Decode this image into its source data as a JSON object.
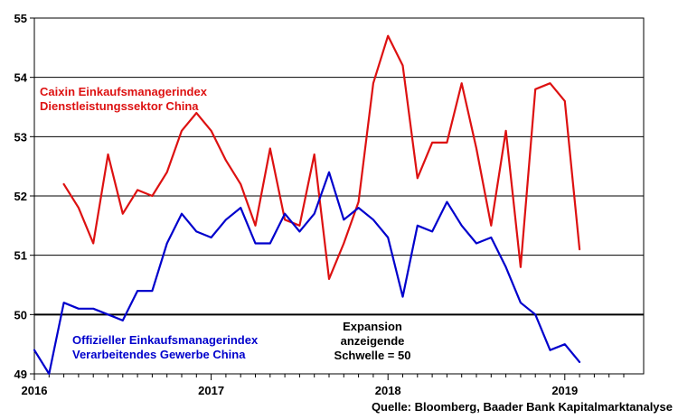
{
  "chart_data": {
    "type": "line",
    "ylim": [
      49,
      55
    ],
    "yticks": [
      "49",
      "50",
      "51",
      "52",
      "53",
      "54",
      "55"
    ],
    "xticks": [
      "2016",
      "2017",
      "2018",
      "2019"
    ],
    "grid": true,
    "reference_line": {
      "value": 50,
      "label": [
        "Expansion",
        "anzeigende",
        "Schwelle = 50"
      ]
    },
    "source": "Quelle: Bloomberg, Baader Bank Kapitalmarktanalyse",
    "colors": {
      "caixin": "#dd1111",
      "official": "#0000cc"
    },
    "series": [
      {
        "name": "Caixin Einkaufsmanagerindex Dienstleistungssektor China",
        "label_lines": [
          "Caixin Einkaufsmanagerindex",
          "Dienstleistungssektor China"
        ],
        "color": "#dd1111",
        "start_month_index": 2,
        "values": [
          52.2,
          51.8,
          51.2,
          52.7,
          51.7,
          52.1,
          52.0,
          52.4,
          53.1,
          53.4,
          53.1,
          52.6,
          52.2,
          51.5,
          52.8,
          51.6,
          51.5,
          52.7,
          50.6,
          51.2,
          51.9,
          53.9,
          54.7,
          54.2,
          52.3,
          52.9,
          52.9,
          53.9,
          52.8,
          51.5,
          53.1,
          50.8,
          53.8,
          53.9,
          53.6,
          51.1
        ]
      },
      {
        "name": "Offizieller Einkaufsmanagerindex Verarbeitendes Gewerbe China",
        "label_lines": [
          "Offizieller Einkaufsmanagerindex",
          "Verarbeitendes Gewerbe China"
        ],
        "color": "#0000cc",
        "start_month_index": 0,
        "values": [
          49.4,
          49.0,
          50.2,
          50.1,
          50.1,
          50.0,
          49.9,
          50.4,
          50.4,
          51.2,
          51.7,
          51.4,
          51.3,
          51.6,
          51.8,
          51.2,
          51.2,
          51.7,
          51.4,
          51.7,
          52.4,
          51.6,
          51.8,
          51.6,
          51.3,
          50.3,
          51.5,
          51.4,
          51.9,
          51.5,
          51.2,
          51.3,
          50.8,
          50.2,
          50.0,
          49.4,
          49.5,
          49.2
        ]
      }
    ]
  }
}
